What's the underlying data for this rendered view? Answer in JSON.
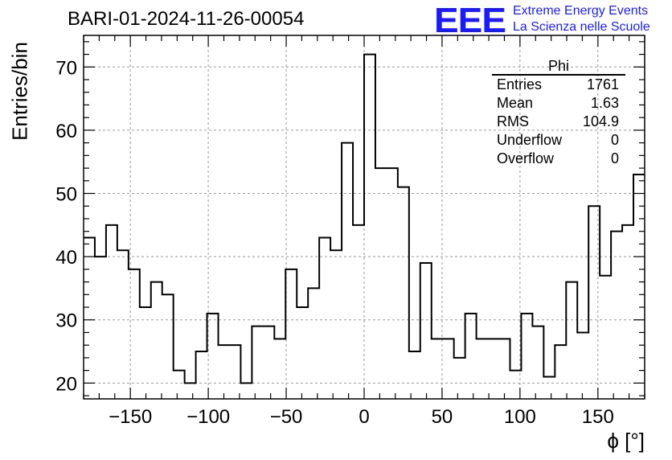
{
  "header": {
    "title": "BARI-01-2024-11-26-00054",
    "logo": "EEE",
    "logo_line1": "Extreme Energy Events",
    "logo_line2": "La Scienza nelle Scuole"
  },
  "stats_box": {
    "title": "Phi",
    "rows": [
      {
        "label": "Entries",
        "value": "1761"
      },
      {
        "label": "Mean",
        "value": "1.63"
      },
      {
        "label": "RMS",
        "value": "104.9"
      },
      {
        "label": "Underflow",
        "value": "0"
      },
      {
        "label": "Overflow",
        "value": "0"
      }
    ]
  },
  "chart_data": {
    "type": "bar",
    "style": "histogram-step",
    "title": "BARI-01-2024-11-26-00054",
    "xlabel": "ϕ [°]",
    "ylabel": "Entries/bin",
    "xlim": [
      -180,
      180
    ],
    "ylim": [
      17.5,
      75
    ],
    "bin_width": 7.2,
    "x_ticks": [
      -150,
      -100,
      -50,
      0,
      50,
      100,
      150
    ],
    "x_tick_labels": [
      "−150",
      "−100",
      "−50",
      "0",
      "50",
      "100",
      "150"
    ],
    "y_ticks": [
      20,
      30,
      40,
      50,
      60,
      70
    ],
    "y_tick_labels": [
      "20",
      "30",
      "40",
      "50",
      "60",
      "70"
    ],
    "grid": true,
    "values": [
      43,
      40,
      45,
      41,
      38,
      32,
      36,
      34,
      22,
      20,
      25,
      31,
      26,
      26,
      20,
      29,
      29,
      27,
      38,
      32,
      35,
      43,
      41,
      58,
      45,
      72,
      54,
      54,
      51,
      25,
      39,
      27,
      27,
      24,
      31,
      27,
      27,
      27,
      22,
      31,
      29,
      21,
      26,
      36,
      28,
      48,
      37,
      44,
      45,
      53
    ],
    "line_color": "#000000",
    "grid_color": "#999999"
  }
}
